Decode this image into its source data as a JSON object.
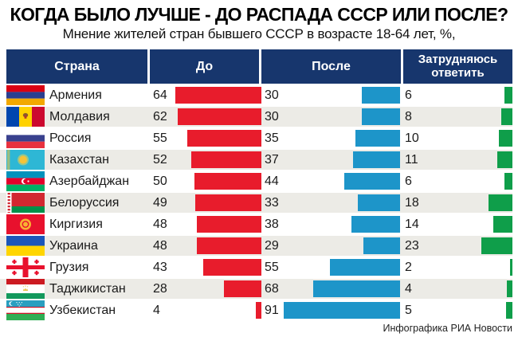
{
  "title": "КОГДА БЫЛО ЛУЧШЕ - ДО РАСПАДА СССР ИЛИ ПОСЛЕ?",
  "subtitle": "Мнение жителей стран бывшего СССР в возрасте 18-64 лет, %,",
  "credit": "Инфографика РИА Новости",
  "columns": {
    "country": "Страна",
    "before": "До",
    "after": "После",
    "undecided": "Затрудняюсь ответить"
  },
  "colors": {
    "header_bg": "#17366d",
    "before_bar": "#e81c2c",
    "after_bar": "#1d95c9",
    "undecided_bar": "#0f9e4a",
    "row_alt_bg": "#ecebe6"
  },
  "rows": [
    {
      "flag": "flag-armenia",
      "country": "Армения",
      "before": 64,
      "after": 30,
      "undecided": 6
    },
    {
      "flag": "flag-moldova",
      "country": "Молдавия",
      "before": 62,
      "after": 30,
      "undecided": 8
    },
    {
      "flag": "flag-russia",
      "country": "Россия",
      "before": 55,
      "after": 35,
      "undecided": 10
    },
    {
      "flag": "flag-kazakhstan",
      "country": "Казахстан",
      "before": 52,
      "after": 37,
      "undecided": 11
    },
    {
      "flag": "flag-azerbaijan",
      "country": "Азербайджан",
      "before": 50,
      "after": 44,
      "undecided": 6
    },
    {
      "flag": "flag-belarus",
      "country": "Белоруссия",
      "before": 49,
      "after": 33,
      "undecided": 18
    },
    {
      "flag": "flag-kyrgyzstan",
      "country": "Киргизия",
      "before": 48,
      "after": 38,
      "undecided": 14
    },
    {
      "flag": "flag-ukraine",
      "country": "Украина",
      "before": 48,
      "after": 29,
      "undecided": 23
    },
    {
      "flag": "flag-georgia",
      "country": "Грузия",
      "before": 43,
      "after": 55,
      "undecided": 2
    },
    {
      "flag": "flag-tajikistan",
      "country": "Таджикистан",
      "before": 28,
      "after": 68,
      "undecided": 4
    },
    {
      "flag": "flag-uzbekistan",
      "country": "Узбекистан",
      "before": 4,
      "after": 91,
      "undecided": 5
    }
  ],
  "chart_data": {
    "type": "bar",
    "orientation": "horizontal",
    "title": "КОГДА БЫЛО ЛУЧШЕ - ДО РАСПАДА СССР ИЛИ ПОСЛЕ?",
    "subtitle": "Мнение жителей стран бывшего СССР в возрасте 18-64 лет, %,",
    "categories": [
      "Армения",
      "Молдавия",
      "Россия",
      "Казахстан",
      "Азербайджан",
      "Белоруссия",
      "Киргизия",
      "Украина",
      "Грузия",
      "Таджикистан",
      "Узбекистан"
    ],
    "series": [
      {
        "name": "До",
        "color": "#e81c2c",
        "values": [
          64,
          62,
          55,
          52,
          50,
          49,
          48,
          48,
          43,
          28,
          4
        ]
      },
      {
        "name": "После",
        "color": "#1d95c9",
        "values": [
          30,
          30,
          35,
          37,
          44,
          33,
          38,
          29,
          55,
          68,
          91
        ]
      },
      {
        "name": "Затрудняюсь ответить",
        "color": "#0f9e4a",
        "values": [
          6,
          8,
          10,
          11,
          6,
          18,
          14,
          23,
          2,
          4,
          5
        ]
      }
    ],
    "value_unit": "%",
    "xlim": [
      0,
      100
    ],
    "grid": false,
    "legend_position": "table-header"
  }
}
